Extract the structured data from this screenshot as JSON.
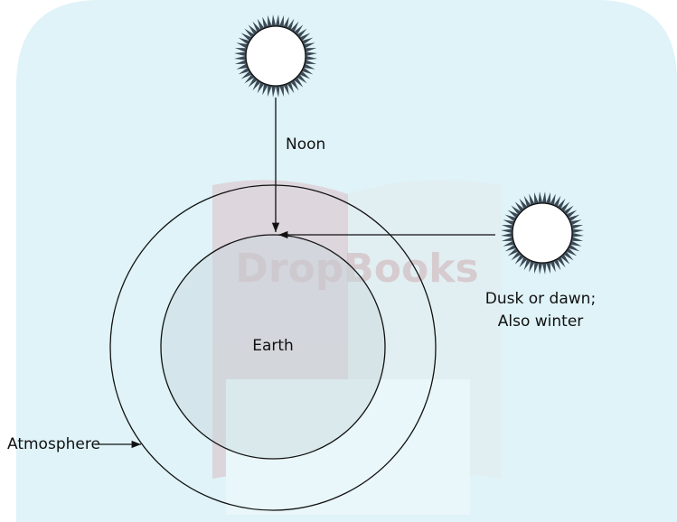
{
  "labels": {
    "noon": "Noon",
    "dusk_line1": "Dusk or dawn;",
    "dusk_line2": "Also winter",
    "earth": "Earth",
    "atmosphere": "Atmosphere"
  },
  "watermark": "DropBooks"
}
